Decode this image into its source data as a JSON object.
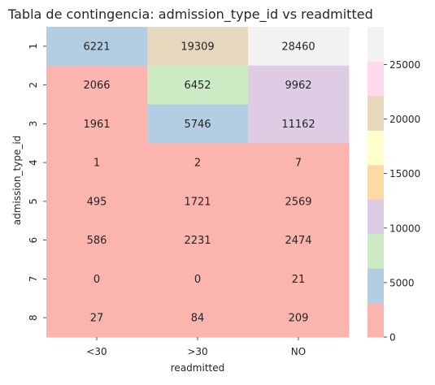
{
  "chart_data": {
    "type": "heatmap",
    "title": "Tabla de contingencia: admission_type_id vs readmitted",
    "xlabel": "readmitted",
    "ylabel": "admission_type_id",
    "x_categories": [
      "<30",
      ">30",
      "NO"
    ],
    "y_categories": [
      "1",
      "2",
      "3",
      "4",
      "5",
      "6",
      "7",
      "8"
    ],
    "values": [
      [
        6221,
        19309,
        28460
      ],
      [
        2066,
        6452,
        9962
      ],
      [
        1961,
        5746,
        11162
      ],
      [
        1,
        2,
        7
      ],
      [
        495,
        1721,
        2569
      ],
      [
        586,
        2231,
        2474
      ],
      [
        0,
        0,
        21
      ],
      [
        27,
        84,
        209
      ]
    ],
    "colorbar": {
      "range": [
        0,
        28460
      ],
      "ticks": [
        0,
        5000,
        10000,
        15000,
        20000,
        25000
      ],
      "tick_labels": [
        "0",
        "5000",
        "10000",
        "15000",
        "20000",
        "25000"
      ]
    },
    "colormap": [
      "#fbb4ae",
      "#b3cde3",
      "#ccebc5",
      "#decbe4",
      "#fed9a6",
      "#ffffcc",
      "#e5d8bd",
      "#fddaec",
      "#f2f2f2"
    ],
    "annotations": true,
    "grid": false
  }
}
